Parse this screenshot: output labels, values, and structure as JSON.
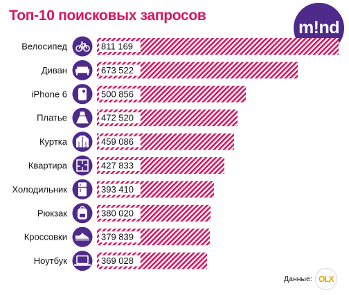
{
  "chart_data": {
    "type": "bar",
    "orientation": "horizontal",
    "title": "Топ-10 поисковых запросов",
    "categories": [
      "Велосипед",
      "Диван",
      "iPhone 6",
      "Платье",
      "Куртка",
      "Квартира",
      "Холодильник",
      "Рюкзак",
      "Кроссовки",
      "Ноутбук"
    ],
    "values": [
      811169,
      673522,
      500856,
      472520,
      459086,
      427833,
      393410,
      380020,
      379839,
      369028
    ],
    "value_labels": [
      "811 169",
      "673 522",
      "500 856",
      "472 520",
      "459 086",
      "427 833",
      "393 410",
      "380 020",
      "379 839",
      "369 028"
    ],
    "icons": [
      "bicycle-icon",
      "sofa-icon",
      "phone-icon",
      "dress-icon",
      "jacket-icon",
      "apartment-plan-icon",
      "fridge-icon",
      "backpack-icon",
      "sneaker-icon",
      "laptop-icon"
    ],
    "bar_color": "#d9145f",
    "bar_pattern": "diagonal-stripes",
    "icon_color": "#4e2a8a",
    "xlim": [
      0,
      811169
    ],
    "grid": false
  },
  "logo": {
    "text": "m!nd"
  },
  "source": {
    "label": "Данные:",
    "brand": "OLX"
  }
}
